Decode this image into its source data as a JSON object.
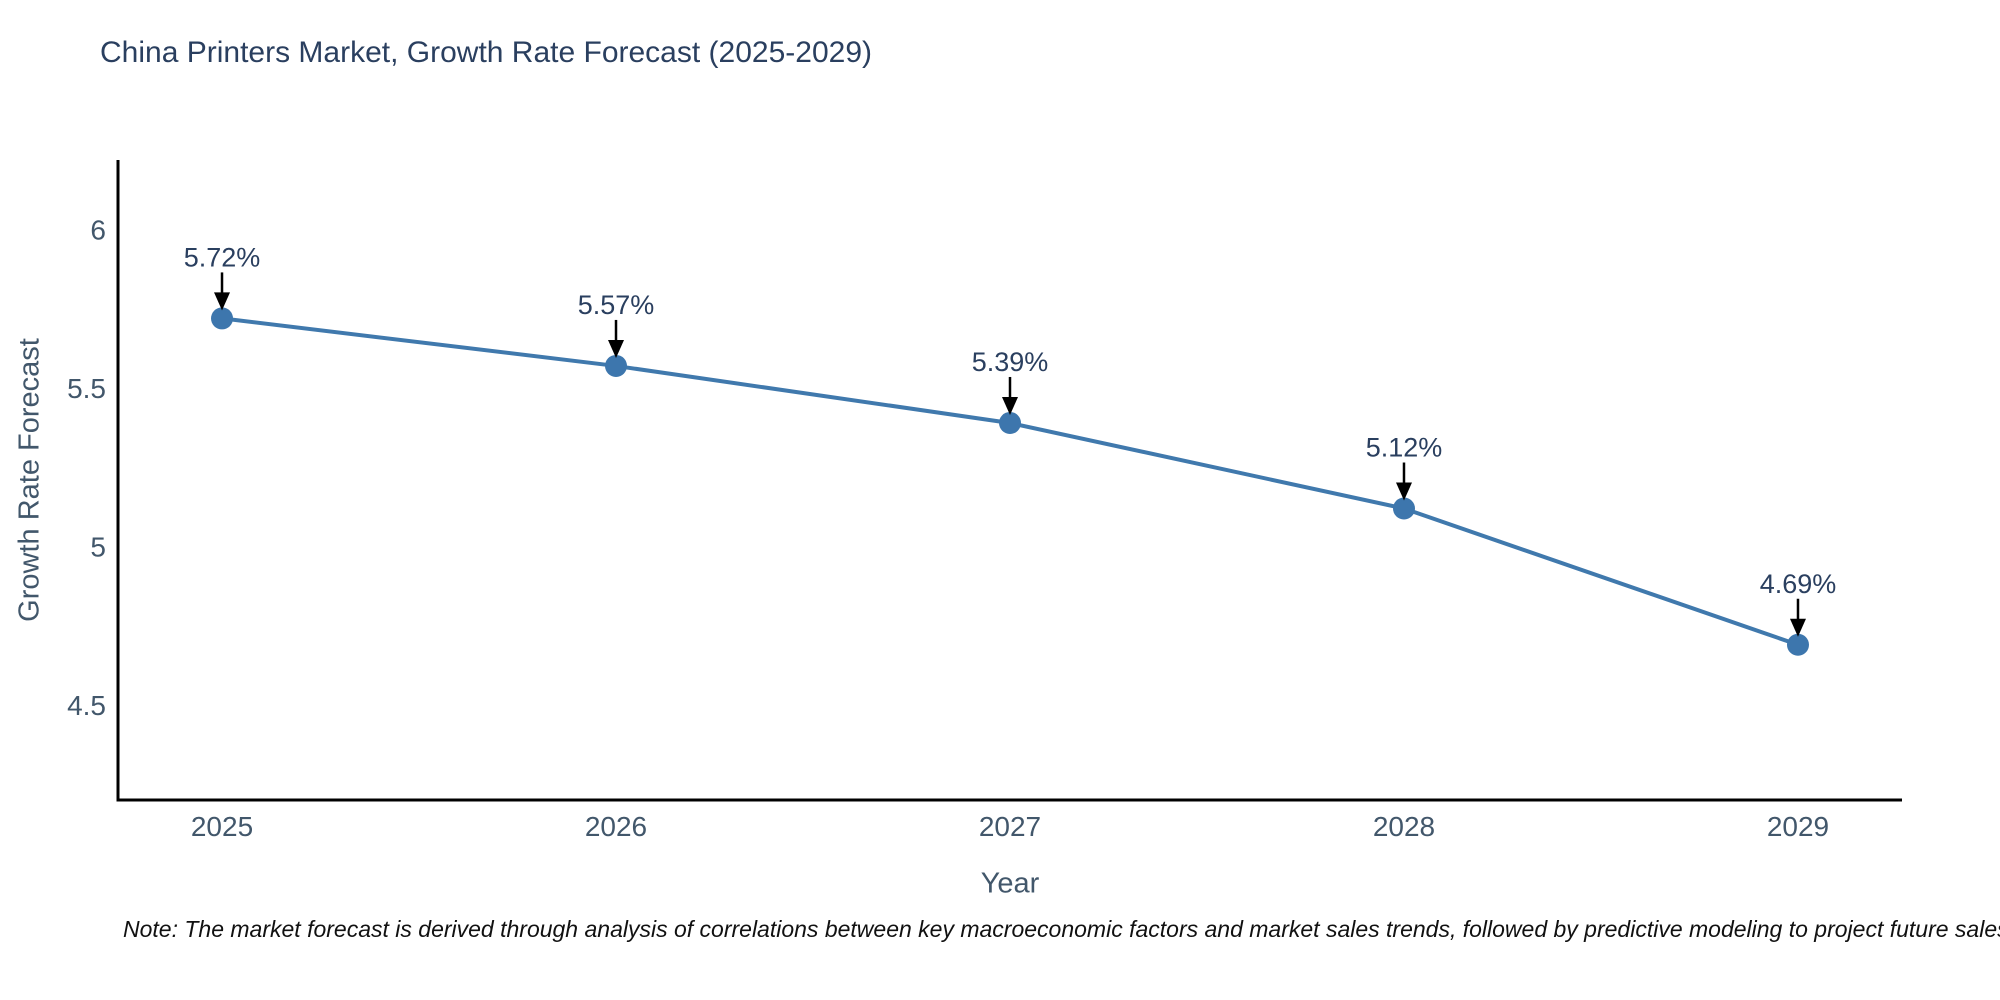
{
  "note": "Note: The market forecast is derived through analysis of correlations between key macroeconomic factors and market sales trends, followed by predictive modeling to project future sales",
  "chart_data": {
    "type": "line",
    "title": "China Printers Market, Growth Rate Forecast (2025-2029)",
    "xlabel": "Year",
    "ylabel": "Growth Rate Forecast",
    "categories": [
      "2025",
      "2026",
      "2027",
      "2028",
      "2029"
    ],
    "series": [
      {
        "name": "Growth Rate Forecast",
        "values": [
          5.72,
          5.57,
          5.39,
          5.12,
          4.69
        ]
      }
    ],
    "point_labels": [
      "5.72%",
      "5.57%",
      "5.39%",
      "5.12%",
      "4.69%"
    ],
    "yticks": [
      4.5,
      5,
      5.5,
      6
    ],
    "ytick_labels": [
      "4.5",
      "5",
      "5.5",
      "6"
    ],
    "ylim": [
      4.2,
      6.22
    ],
    "grid": false,
    "legend": false,
    "annotation_style": "arrow-down-to-point",
    "colors": {
      "line": "#4079ad",
      "marker": "#3d76ad",
      "axis": "#000000",
      "title_text": "#2a3f5f",
      "tick_text": "#42576b",
      "annotation_text": "#2a3f5f",
      "annotation_arrow": "#000000",
      "background": "#ffffff"
    }
  }
}
